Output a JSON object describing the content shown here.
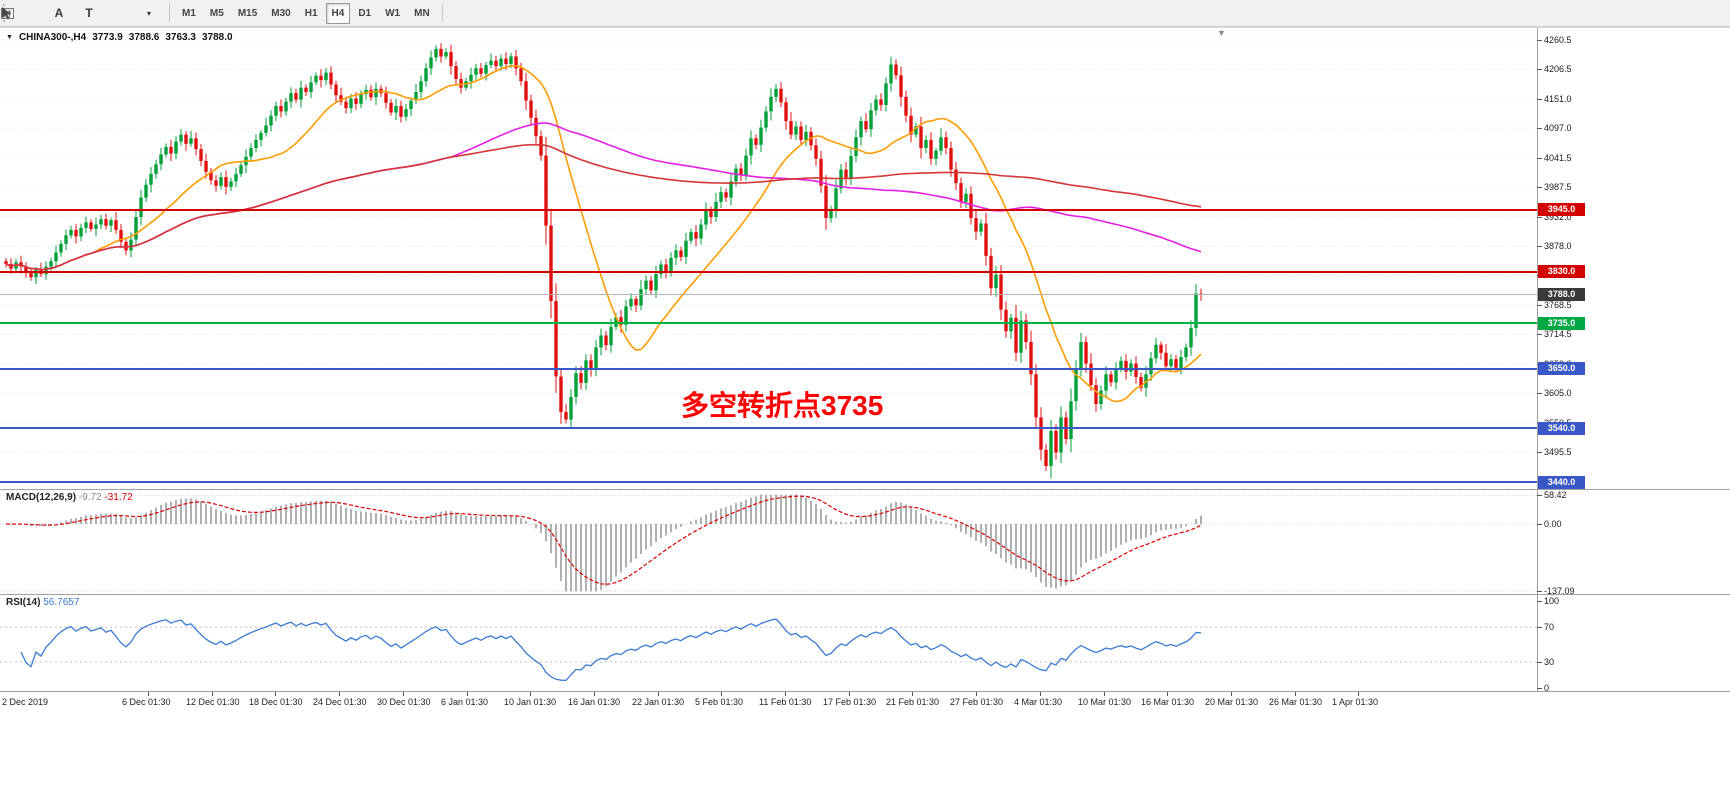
{
  "toolbar": {
    "font_tool": "A",
    "text_tool": "T",
    "dropdown": "▾",
    "timeframes": [
      "M1",
      "M5",
      "M15",
      "M30",
      "H1",
      "H4",
      "D1",
      "W1",
      "MN"
    ],
    "active_timeframe": "H4"
  },
  "icons": {
    "collapse": "▼",
    "shift_marker": "▼"
  },
  "header": {
    "symbol": "CHINA300-,H4",
    "open": "3773.9",
    "high": "3788.6",
    "low": "3763.3",
    "close": "3788.0"
  },
  "annotation": {
    "text": "多空转折点3735",
    "color": "#ff0000"
  },
  "y_axis": {
    "labels": [
      4260.5,
      4206.5,
      4151.0,
      4097.0,
      4041.5,
      3987.5,
      3932.0,
      3878.0,
      3824.0,
      3768.5,
      3714.5,
      3659.0,
      3605.0,
      3550.5,
      3495.5
    ]
  },
  "levels": [
    {
      "price": 3945.0,
      "label": "3945.0",
      "color": "#d40000",
      "tag_bg": "#d40000",
      "thickness": 2,
      "role": "resistance"
    },
    {
      "price": 3830.0,
      "label": "3830.0",
      "color": "#d40000",
      "tag_bg": "#d40000",
      "thickness": 2,
      "role": "resistance"
    },
    {
      "price": 3788.0,
      "label": "3788.0",
      "color": "#b4b4b4",
      "tag_bg": "#3a3a3a",
      "thickness": 1,
      "role": "current-price"
    },
    {
      "price": 3735.0,
      "label": "3735.0",
      "color": "#00b44a",
      "tag_bg": "#00a844",
      "thickness": 2,
      "role": "pivot"
    },
    {
      "price": 3650.0,
      "label": "3650.0",
      "color": "#3a57c8",
      "tag_bg": "#3a57c8",
      "thickness": 2,
      "role": "support"
    },
    {
      "price": 3540.0,
      "label": "3540.0",
      "color": "#3a57c8",
      "tag_bg": "#3a57c8",
      "thickness": 2,
      "role": "support"
    },
    {
      "price": 3440.0,
      "label": "3440.0",
      "color": "#3a57c8",
      "tag_bg": "#3a57c8",
      "thickness": 2,
      "role": "support"
    }
  ],
  "macd": {
    "name": "MACD(12,26,9)",
    "main_value": "-9.72",
    "signal_value": "-31.72",
    "axis": [
      58.42,
      0.0,
      -137.09
    ],
    "histogram_color": "#b0b0b0",
    "signal_color": "#dd0000"
  },
  "rsi": {
    "name": "RSI(14)",
    "value": "56.7657",
    "axis": [
      100,
      70,
      30,
      0
    ],
    "line_color": "#3a7bd5"
  },
  "x_axis": {
    "labels": [
      "2 Dec 2019",
      "6 Dec 01:30",
      "12 Dec 01:30",
      "18 Dec 01:30",
      "24 Dec 01:30",
      "30 Dec 01:30",
      "6 Jan 01:30",
      "10 Jan 01:30",
      "16 Jan 01:30",
      "22 Jan 01:30",
      "5 Feb 01:30",
      "11 Feb 01:30",
      "17 Feb 01:30",
      "21 Feb 01:30",
      "27 Feb 01:30",
      "4 Mar 01:30",
      "10 Mar 01:30",
      "16 Mar 01:30",
      "20 Mar 01:30",
      "26 Mar 01:30",
      "1 Apr 01:30"
    ]
  },
  "chart_data": {
    "type": "candlestick",
    "symbol": "CHINA300-",
    "timeframe": "H4",
    "title": "CHINA300-,H4 3773.9 3788.6 3763.3 3788.0",
    "ylim": [
      3425,
      4279
    ],
    "up_color": "#00a03a",
    "down_color": "#e01010",
    "first_open": 3850,
    "closes": [
      3845,
      3836,
      3848,
      3840,
      3828,
      3820,
      3834,
      3826,
      3840,
      3850,
      3866,
      3882,
      3898,
      3908,
      3896,
      3912,
      3922,
      3910,
      3918,
      3928,
      3916,
      3926,
      3908,
      3886,
      3870,
      3890,
      3932,
      3968,
      3992,
      4012,
      4030,
      4048,
      4062,
      4050,
      4072,
      4085,
      4068,
      4078,
      4058,
      4036,
      4016,
      4000,
      3990,
      4006,
      3988,
      3998,
      4012,
      4028,
      4044,
      4060,
      4075,
      4088,
      4102,
      4120,
      4138,
      4128,
      4146,
      4162,
      4150,
      4172,
      4164,
      4182,
      4194,
      4186,
      4200,
      4178,
      4158,
      4146,
      4134,
      4152,
      4142,
      4160,
      4168,
      4154,
      4170,
      4162,
      4144,
      4126,
      4138,
      4118,
      4132,
      4148,
      4164,
      4184,
      4208,
      4228,
      4244,
      4230,
      4238,
      4212,
      4188,
      4172,
      4184,
      4196,
      4208,
      4198,
      4214,
      4222,
      4212,
      4226,
      4216,
      4230,
      4208,
      4184,
      4148,
      4116,
      4082,
      4046,
      3916,
      3776,
      3636,
      3570,
      3556,
      3598,
      3642,
      3624,
      3666,
      3648,
      3690,
      3712,
      3694,
      3728,
      3746,
      3732,
      3766,
      3780,
      3768,
      3798,
      3814,
      3796,
      3826,
      3844,
      3830,
      3856,
      3870,
      3858,
      3888,
      3904,
      3892,
      3918,
      3946,
      3932,
      3960,
      3978,
      3968,
      3998,
      4022,
      4010,
      4046,
      4078,
      4066,
      4098,
      4128,
      4155,
      4170,
      4145,
      4110,
      4085,
      4100,
      4075,
      4090,
      4065,
      4040,
      3990,
      3930,
      3945,
      3985,
      4020,
      4005,
      4045,
      4080,
      4110,
      4095,
      4130,
      4150,
      4140,
      4180,
      4215,
      4195,
      4155,
      4120,
      4085,
      4100,
      4060,
      4075,
      4040,
      4055,
      4080,
      4060,
      4020,
      3995,
      3960,
      3975,
      3930,
      3905,
      3920,
      3860,
      3800,
      3825,
      3760,
      3720,
      3745,
      3680,
      3740,
      3700,
      3640,
      3560,
      3500,
      3470,
      3535,
      3495,
      3560,
      3520,
      3590,
      3650,
      3700,
      3660,
      3620,
      3585,
      3610,
      3640,
      3625,
      3650,
      3665,
      3645,
      3660,
      3635,
      3615,
      3640,
      3670,
      3695,
      3680,
      3655,
      3668,
      3652,
      3672,
      3690,
      3726,
      3790,
      3788
    ],
    "wick_pattern": [
      5,
      9,
      4,
      11,
      6,
      8,
      3,
      12,
      7,
      5,
      10,
      4,
      8,
      6,
      9
    ],
    "moving_averages": [
      {
        "name": "fast",
        "period": 18,
        "color": "#ff9c00"
      },
      {
        "name": "medium",
        "period": 90,
        "color": "#e520e5"
      },
      {
        "name": "slow",
        "period": 200,
        "color": "#d43535"
      }
    ],
    "horizontal_levels": [
      3945,
      3830,
      3788,
      3735,
      3650,
      3540,
      3440
    ],
    "indicators": [
      {
        "type": "MACD",
        "params": [
          12,
          26,
          9
        ],
        "axis_range": [
          58.42,
          -137.09
        ]
      },
      {
        "type": "RSI",
        "params": [
          14
        ],
        "levels": [
          70,
          30
        ]
      }
    ]
  }
}
